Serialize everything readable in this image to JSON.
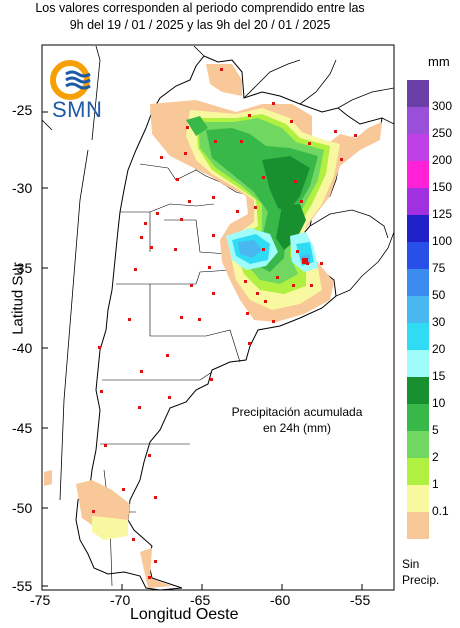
{
  "header": {
    "line1": "Los valores corresponden al periodo comprendido entre las",
    "line2": "9h del 19 / 01 / 2025  y las 9h del 20 / 01 / 2025"
  },
  "logo": {
    "text": "SMN"
  },
  "axes": {
    "ylabel": "Latitud Sur",
    "xlabel": "Longitud Oeste",
    "yticks": [
      "-25",
      "-30",
      "-35",
      "-40",
      "-45",
      "-50",
      "-55"
    ],
    "xticks": [
      "-75",
      "-70",
      "-65",
      "-60",
      "-55"
    ]
  },
  "annotation": {
    "line1": "Precipitación acumulada",
    "line2": "en 24h (mm)"
  },
  "legend": {
    "unit": "mm",
    "no_precip_line1": "Sin",
    "no_precip_line2": "Precip.",
    "entries": [
      {
        "label": "300",
        "color": "#6a3fa6"
      },
      {
        "label": "250",
        "color": "#9a4fd8"
      },
      {
        "label": "200",
        "color": "#c040e8"
      },
      {
        "label": "150",
        "color": "#ff20d8"
      },
      {
        "label": "125",
        "color": "#a030e0"
      },
      {
        "label": "100",
        "color": "#2020c8"
      },
      {
        "label": "75",
        "color": "#2850e8"
      },
      {
        "label": "50",
        "color": "#3c8cf0"
      },
      {
        "label": "30",
        "color": "#4ab8f0"
      },
      {
        "label": "20",
        "color": "#30dcf4"
      },
      {
        "label": "15",
        "color": "#a0fcf8"
      },
      {
        "label": "10",
        "color": "#189030"
      },
      {
        "label": "5",
        "color": "#38b848"
      },
      {
        "label": "2",
        "color": "#70d860"
      },
      {
        "label": "1",
        "color": "#b0f040"
      },
      {
        "label": "0.1",
        "color": "#f8f8a0"
      },
      {
        "label": "",
        "color": "#f8c898"
      }
    ]
  }
}
